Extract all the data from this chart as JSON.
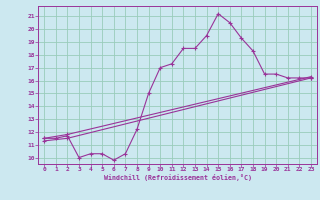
{
  "xlabel": "Windchill (Refroidissement éolien,°C)",
  "bg_color": "#cce8f0",
  "grid_color": "#99ccbb",
  "line_color": "#993399",
  "xlim": [
    -0.5,
    23.5
  ],
  "ylim": [
    9.5,
    21.8
  ],
  "xticks": [
    0,
    1,
    2,
    3,
    4,
    5,
    6,
    7,
    8,
    9,
    10,
    11,
    12,
    13,
    14,
    15,
    16,
    17,
    18,
    19,
    20,
    21,
    22,
    23
  ],
  "yticks": [
    10,
    11,
    12,
    13,
    14,
    15,
    16,
    17,
    18,
    19,
    20,
    21
  ],
  "line1_x": [
    0,
    1,
    2,
    3,
    4,
    5,
    6,
    7,
    8,
    9,
    10,
    11,
    12,
    13,
    14,
    15,
    16,
    17,
    18,
    19,
    20,
    21,
    22,
    23
  ],
  "line1_y": [
    11.5,
    11.5,
    11.7,
    10.0,
    10.3,
    10.3,
    9.8,
    10.3,
    12.2,
    15.0,
    17.0,
    17.3,
    18.5,
    18.5,
    19.5,
    21.2,
    20.5,
    19.3,
    18.3,
    16.5,
    16.5,
    16.2,
    16.2,
    16.2
  ],
  "line2_x": [
    0,
    2,
    23
  ],
  "line2_y": [
    11.5,
    11.8,
    16.3
  ],
  "line3_x": [
    0,
    2,
    23
  ],
  "line3_y": [
    11.3,
    11.5,
    16.2
  ]
}
